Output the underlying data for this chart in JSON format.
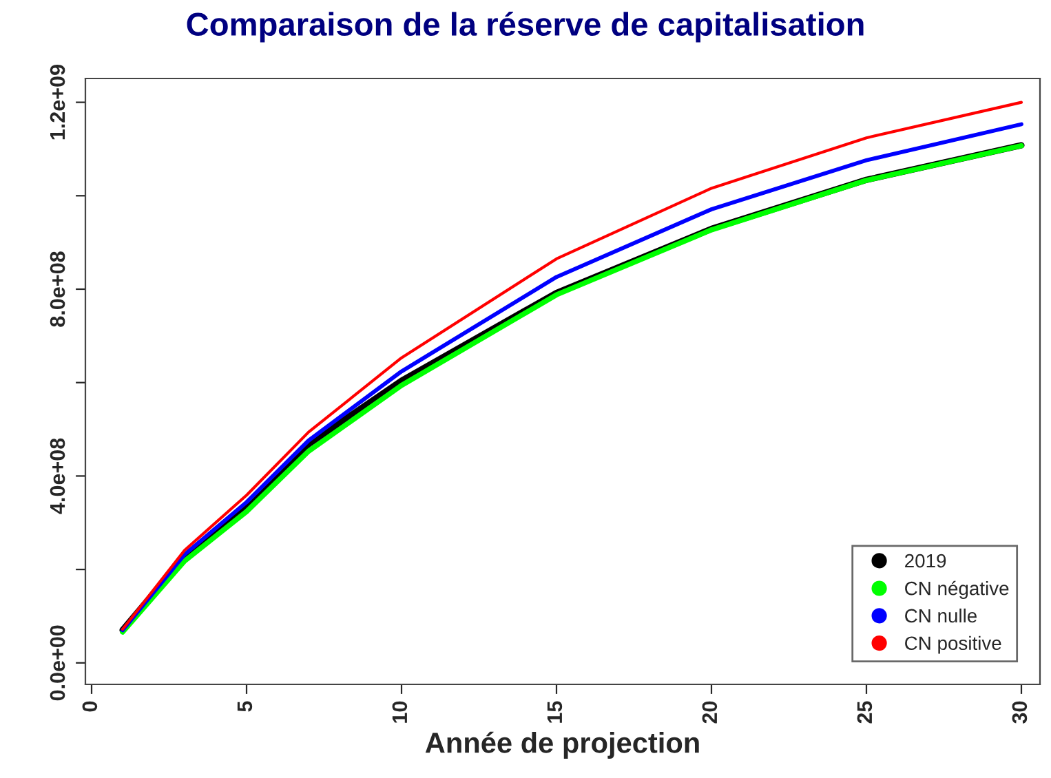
{
  "chart_data": {
    "type": "line",
    "title": "Comparaison de la réserve de capitalisation",
    "xlabel": "Année de projection",
    "x": [
      1,
      3,
      5,
      7,
      10,
      15,
      20,
      25,
      30
    ],
    "series": [
      {
        "name": "2019",
        "color": "#000000",
        "values": [
          70000000,
          228000000,
          338000000,
          468000000,
          604000000,
          792000000,
          929000000,
          1034000000,
          1108000000
        ]
      },
      {
        "name": "CN négative",
        "color": "#00ff00",
        "values": [
          66000000,
          218000000,
          324000000,
          453000000,
          594000000,
          788000000,
          927000000,
          1033000000,
          1107000000
        ]
      },
      {
        "name": "CN nulle",
        "color": "#0000ff",
        "values": [
          70000000,
          232000000,
          344000000,
          476000000,
          624000000,
          826000000,
          971000000,
          1076000000,
          1153000000
        ]
      },
      {
        "name": "CN positive",
        "color": "#ff0000",
        "values": [
          72000000,
          241000000,
          359000000,
          494000000,
          653000000,
          865000000,
          1016000000,
          1124000000,
          1200000000
        ]
      }
    ],
    "xlim": [
      -0.2,
      30.6
    ],
    "xticks": [
      0,
      5,
      10,
      15,
      20,
      25,
      30
    ],
    "ylim": [
      -46000000,
      1251000000
    ],
    "yticks": [
      {
        "value": 0,
        "label": "0.0e+00"
      },
      {
        "value": 200000000,
        "label": null
      },
      {
        "value": 400000000,
        "label": "4.0e+08"
      },
      {
        "value": 600000000,
        "label": null
      },
      {
        "value": 800000000,
        "label": "8.0e+08"
      },
      {
        "value": 1000000000,
        "label": null
      },
      {
        "value": 1200000000,
        "label": "1.2e+09"
      }
    ],
    "grid": false,
    "legend": "bottom right",
    "marker": "none",
    "line_style": "solid"
  }
}
